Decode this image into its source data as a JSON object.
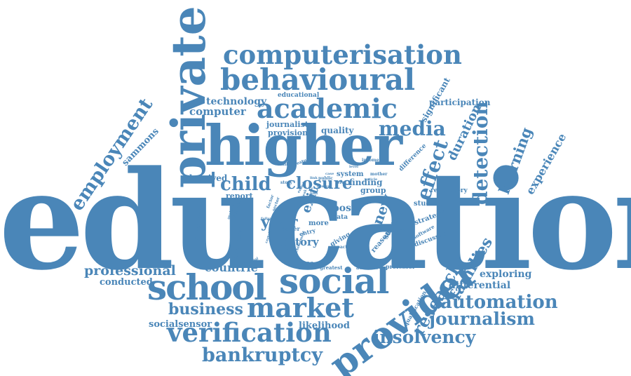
{
  "color": "#4a86b8",
  "words": {
    "education": "education",
    "higher": "higher",
    "private": "private",
    "computerisation": "computerisation",
    "behavioural": "behavioural",
    "academic": "academic",
    "school": "school",
    "social": "social",
    "market": "market",
    "provider": "provider",
    "verification": "verification",
    "bankruptcy": "bankruptcy",
    "insolvency": "insolvency",
    "journalism": "journalism",
    "automation": "automation",
    "business": "business",
    "professional": "professional",
    "employment": "employment",
    "media": "media",
    "detection": "detection",
    "effect": "effect",
    "child": "child",
    "closure": "closure",
    "research": "research",
    "families": "families",
    "learning": "learning",
    "experience": "experience",
    "duration": "duration",
    "technology": "technology",
    "computer": "computer",
    "sammons": "sammons",
    "countrie": "countrie",
    "socialsensor": "socialsensor",
    "likelihood": "likelihood",
    "differential": "differential",
    "exploring": "exploring",
    "conducted": "conducted",
    "participation": "participation",
    "significant": "significant",
    "quality": "quality",
    "journalist": "journalist",
    "provision": "provision",
    "educational": "educational",
    "deprived": "deprived",
    "year": "year",
    "history": "history",
    "new": "new",
    "exit": "exit",
    "post": "post",
    "finding": "finding",
    "group": "group",
    "system": "system",
    "report": "report",
    "government": "government",
    "attainment": "attainment",
    "student": "student",
    "strategy": "strategy",
    "regulatory": "regulatory",
    "difference": "difference",
    "qualification": "qualification",
    "analyse": "analyse",
    "greatest": "greatest",
    "account": "account",
    "professor": "professor",
    "more": "more",
    "data": "data",
    "reason": "reason",
    "starting": "starting",
    "discusses": "discusses",
    "software": "software",
    "biases": "biases",
    "giving": "giving",
    "impact": "impact",
    "entry": "entry",
    "paper": "paper",
    "change": "change",
    "term": "term",
    "income": "income",
    "mother": "mother",
    "article": "article",
    "public": "public",
    "skilled": "skilled",
    "feature": "feature",
    "story": "story",
    "manual": "manual",
    "factor": "factor",
    "sector": "sector",
    "failure": "failure",
    "available": "available",
    "analysis": "analysis",
    "certain": "certain",
    "achievement": "achievement",
    "context": "context",
    "link": "link",
    "case": "case",
    "ended": "ended",
    "peak": "peak",
    "unit": "unit",
    "level": "level"
  }
}
